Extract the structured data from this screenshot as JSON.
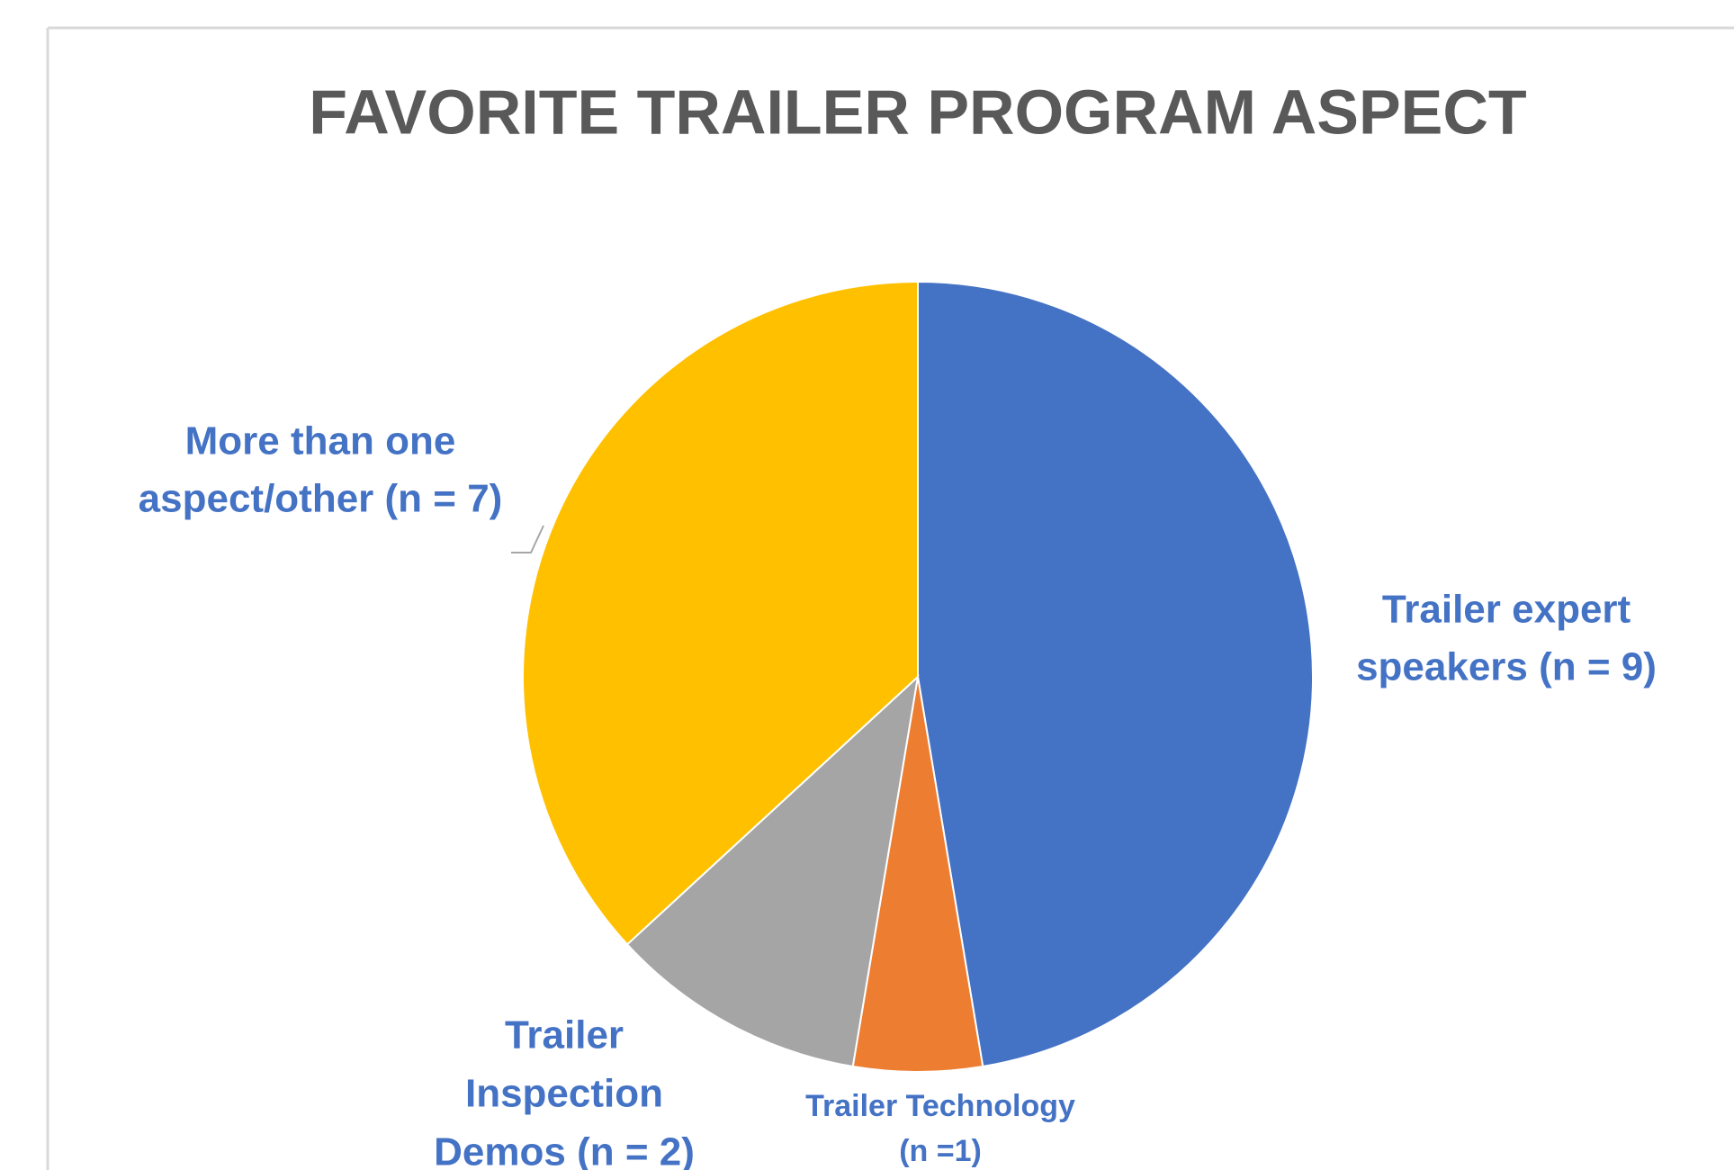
{
  "chart_data": {
    "type": "pie",
    "title": "FAVORITE TRAILER PROGRAM ASPECT",
    "categories": [
      [
        "Trailer expert",
        "speakers (n = 9)"
      ],
      [
        "Trailer Technology",
        "(n =1)"
      ],
      [
        "Trailer",
        "Inspection",
        "Demos (n = 2)"
      ],
      [
        "More than one",
        "aspect/other (n = 7)"
      ]
    ],
    "values": [
      9,
      1,
      2,
      7
    ],
    "colors": [
      "#4472c4",
      "#ed7d31",
      "#a5a5a5",
      "#ffc000"
    ]
  }
}
